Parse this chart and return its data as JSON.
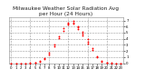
{
  "title": "Milwaukee Weather Solar Radiation Avg",
  "subtitle": "per Hour (24 Hours)",
  "scatter_data": [
    [
      0,
      0
    ],
    [
      0,
      0
    ],
    [
      1,
      0
    ],
    [
      1,
      0
    ],
    [
      2,
      0
    ],
    [
      2,
      0
    ],
    [
      3,
      0
    ],
    [
      3,
      0
    ],
    [
      4,
      0
    ],
    [
      4,
      2
    ],
    [
      5,
      5
    ],
    [
      5,
      10
    ],
    [
      6,
      22
    ],
    [
      6,
      35
    ],
    [
      7,
      65
    ],
    [
      7,
      85
    ],
    [
      8,
      145
    ],
    [
      8,
      175
    ],
    [
      9,
      275
    ],
    [
      9,
      305
    ],
    [
      10,
      405
    ],
    [
      10,
      445
    ],
    [
      11,
      535
    ],
    [
      11,
      575
    ],
    [
      12,
      630
    ],
    [
      12,
      655
    ],
    [
      12,
      670
    ],
    [
      13,
      670
    ],
    [
      13,
      690
    ],
    [
      13,
      650
    ],
    [
      14,
      590
    ],
    [
      14,
      565
    ],
    [
      14,
      610
    ],
    [
      15,
      490
    ],
    [
      15,
      460
    ],
    [
      15,
      510
    ],
    [
      16,
      355
    ],
    [
      16,
      325
    ],
    [
      16,
      390
    ],
    [
      17,
      215
    ],
    [
      17,
      245
    ],
    [
      18,
      95
    ],
    [
      18,
      115
    ],
    [
      19,
      28
    ],
    [
      19,
      38
    ],
    [
      20,
      5
    ],
    [
      20,
      10
    ],
    [
      21,
      0
    ],
    [
      21,
      2
    ],
    [
      22,
      0
    ],
    [
      22,
      0
    ],
    [
      23,
      0
    ],
    [
      23,
      0
    ]
  ],
  "dot_color": "#ff0000",
  "dot_size": 1.8,
  "bg_color": "#ffffff",
  "grid_color": "#999999",
  "grid_style": "--",
  "xlim_min": -0.5,
  "xlim_max": 23.5,
  "ylim_min": 0,
  "ylim_max": 750,
  "yticks": [
    0,
    100,
    200,
    300,
    400,
    500,
    600,
    700
  ],
  "ytick_labels": [
    "0",
    "1",
    "2",
    "3",
    "4",
    "5",
    "6",
    "7"
  ],
  "xticks": [
    0,
    1,
    2,
    3,
    4,
    5,
    6,
    7,
    8,
    9,
    10,
    11,
    12,
    13,
    14,
    15,
    16,
    17,
    18,
    19,
    20,
    21,
    22,
    23
  ],
  "xtick_labels": [
    "0",
    "1",
    "2",
    "3",
    "4",
    "5",
    "6",
    "7",
    "8",
    "9",
    "10",
    "11",
    "12",
    "13",
    "14",
    "15",
    "16",
    "17",
    "18",
    "19",
    "20",
    "21",
    "22",
    "23"
  ],
  "title_fontsize": 4.2,
  "tick_fontsize": 2.8,
  "grid_x_positions": [
    0,
    4,
    8,
    12,
    16,
    20
  ]
}
